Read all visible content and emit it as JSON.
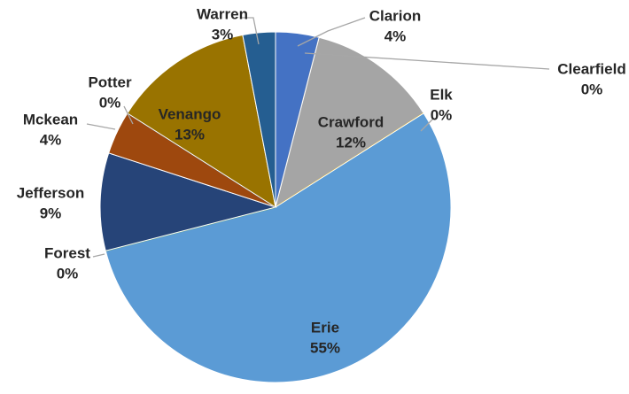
{
  "chart_data": {
    "type": "pie",
    "categories": [
      "Clarion",
      "Clearfield",
      "Crawford",
      "Elk",
      "Erie",
      "Forest",
      "Jefferson",
      "Mckean",
      "Potter",
      "Venango",
      "Warren"
    ],
    "values": [
      4,
      0,
      12,
      0,
      55,
      0,
      9,
      4,
      0,
      13,
      3
    ],
    "value_labels": [
      "4%",
      "0%",
      "12%",
      "0%",
      "55%",
      "0%",
      "9%",
      "4%",
      "0%",
      "13%",
      "3%"
    ],
    "colors": [
      "#4472c4",
      "#a5a5a5",
      "#a5a5a5",
      "#ffc000",
      "#5b9bd5",
      "#70ad47",
      "#264478",
      "#9e480e",
      "#636363",
      "#997300",
      "#255e91"
    ]
  }
}
